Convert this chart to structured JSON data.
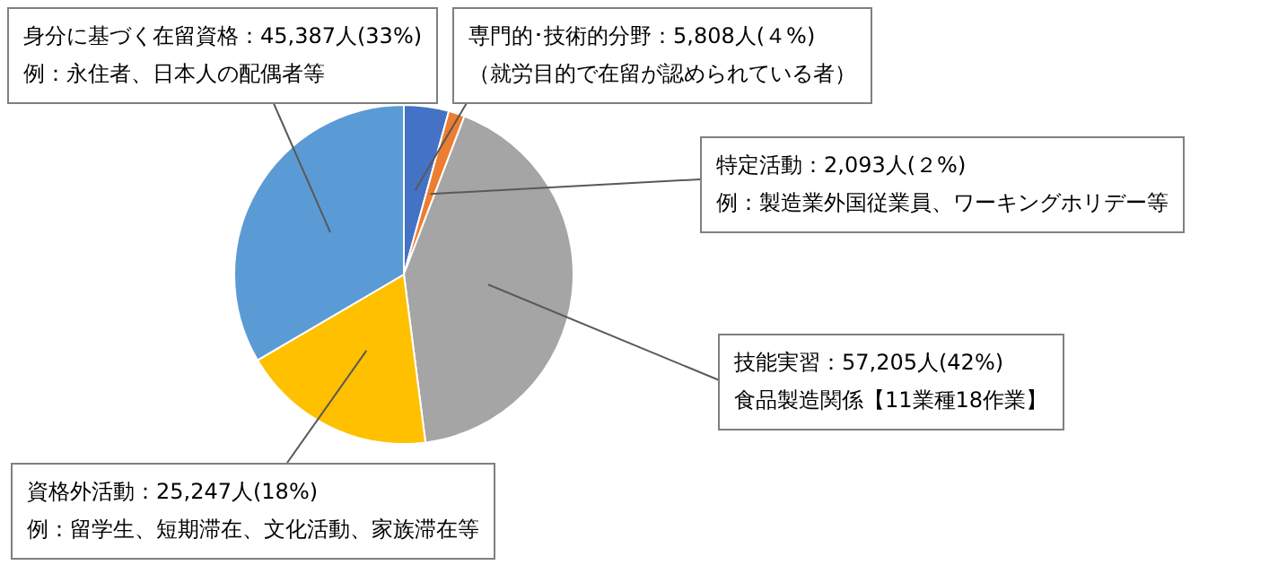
{
  "chart_data": {
    "type": "pie",
    "categories": [
      "専門的･技術的分野",
      "特定活動",
      "技能実習",
      "資格外活動",
      "身分に基づく在留資格"
    ],
    "values": [
      5808,
      2093,
      57205,
      25247,
      45387
    ],
    "colors": [
      "#4472c4",
      "#ed7d31",
      "#a5a5a5",
      "#ffc000",
      "#5b9bd5"
    ],
    "value_labels": [
      "：5,808人(４%)",
      "：2,093人(２%)",
      "：57,205人(42%)",
      "：25,247人(18%)",
      "：45,387人(33%)"
    ],
    "annotations": [
      "（就労目的で在留が認められている者）",
      "例：製造業外国従業員、ワーキングホリデー等",
      "食品製造関係【11業種18作業】",
      "例：留学生、短期滞在、文化活動、家族滞在等",
      "例：永住者、日本人の配偶者等"
    ],
    "legend": false
  }
}
